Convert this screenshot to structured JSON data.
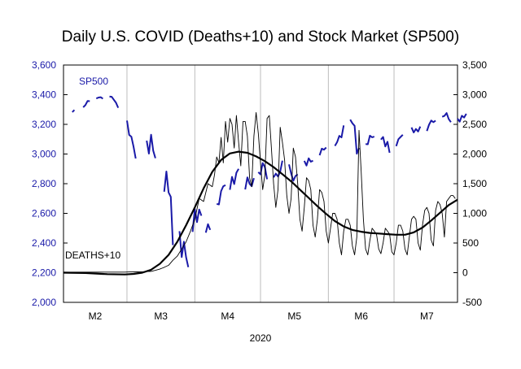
{
  "chart_data": {
    "type": "line",
    "title": "Daily U.S. COVID (Deaths+10) and Stock Market (SP500)",
    "year_label": "2020",
    "grid": "vertical",
    "x_months": [
      "M2",
      "M3",
      "M4",
      "M5",
      "M6",
      "M7"
    ],
    "x_range_days": [
      0,
      180
    ],
    "ylim_left": [
      2000,
      3600
    ],
    "ylim_right": [
      -500,
      3500
    ],
    "y_ticks_left": [
      "2,000",
      "2,200",
      "2,400",
      "2,600",
      "2,800",
      "3,000",
      "3,200",
      "3,400",
      "3,600"
    ],
    "y_ticks_right": [
      "-500",
      "0",
      "500",
      "1,000",
      "1,500",
      "2,000",
      "2,500",
      "3,000",
      "3,500"
    ],
    "colors": {
      "sp500": "#1a1aa8",
      "deaths": "#000000"
    },
    "series": [
      {
        "name": "SP500",
        "axis": "left",
        "label_text": "SP500",
        "points": [
          [
            2,
            3245
          ],
          [
            4,
            3283
          ],
          [
            5,
            3297
          ],
          [
            7,
            3300
          ],
          [
            9,
            3315
          ],
          [
            10,
            3330
          ],
          [
            11,
            3358
          ],
          [
            12,
            3356
          ],
          [
            15,
            3374
          ],
          [
            16,
            3381
          ],
          [
            17,
            3383
          ],
          [
            18,
            3373
          ],
          [
            21,
            3388
          ],
          [
            22,
            3386
          ],
          [
            23,
            3366
          ],
          [
            24,
            3346
          ],
          [
            25,
            3312
          ],
          [
            29,
            3225
          ],
          [
            30,
            3129
          ],
          [
            31,
            3116
          ],
          [
            32,
            3051
          ],
          [
            33,
            2970
          ],
          [
            35,
            2954
          ],
          [
            38,
            3090
          ],
          [
            39,
            3003
          ],
          [
            40,
            3130
          ],
          [
            41,
            3023
          ],
          [
            42,
            2972
          ],
          [
            46,
            2746
          ],
          [
            47,
            2882
          ],
          [
            48,
            2741
          ],
          [
            49,
            2711
          ],
          [
            50,
            2386
          ],
          [
            53,
            2480
          ],
          [
            54,
            2305
          ],
          [
            55,
            2409
          ],
          [
            56,
            2304
          ],
          [
            57,
            2237
          ],
          [
            59,
            2475
          ],
          [
            60,
            2630
          ],
          [
            61,
            2541
          ],
          [
            62,
            2626
          ],
          [
            63,
            2584
          ],
          [
            65,
            2470
          ],
          [
            66,
            2527
          ],
          [
            67,
            2489
          ],
          [
            70,
            2664
          ],
          [
            71,
            2660
          ],
          [
            72,
            2750
          ],
          [
            73,
            2783
          ],
          [
            74,
            2790
          ],
          [
            76,
            2759
          ],
          [
            77,
            2846
          ],
          [
            78,
            2797
          ],
          [
            79,
            2874
          ],
          [
            80,
            2900
          ],
          [
            83,
            2761
          ],
          [
            84,
            2843
          ],
          [
            85,
            2799
          ],
          [
            86,
            2783
          ],
          [
            87,
            2837
          ],
          [
            89,
            2878
          ],
          [
            90,
            2863
          ],
          [
            91,
            2939
          ],
          [
            92,
            2912
          ],
          [
            93,
            2830
          ],
          [
            96,
            2842
          ],
          [
            97,
            2868
          ],
          [
            98,
            2848
          ],
          [
            99,
            2881
          ],
          [
            100,
            2955
          ],
          [
            103,
            2930
          ],
          [
            104,
            2870
          ],
          [
            105,
            2820
          ],
          [
            106,
            2852
          ],
          [
            107,
            2863
          ],
          [
            110,
            2954
          ],
          [
            111,
            2922
          ],
          [
            112,
            2971
          ],
          [
            113,
            2948
          ],
          [
            114,
            2955
          ],
          [
            117,
            2991
          ],
          [
            118,
            3036
          ],
          [
            119,
            3029
          ],
          [
            120,
            3044
          ],
          [
            124,
            3055
          ],
          [
            125,
            3080
          ],
          [
            126,
            3122
          ],
          [
            127,
            3112
          ],
          [
            128,
            3193
          ],
          [
            131,
            3232
          ],
          [
            132,
            3207
          ],
          [
            133,
            3190
          ],
          [
            134,
            3002
          ],
          [
            135,
            3041
          ],
          [
            138,
            3067
          ],
          [
            139,
            3066
          ],
          [
            140,
            3124
          ],
          [
            141,
            3113
          ],
          [
            142,
            3117
          ],
          [
            145,
            3097
          ],
          [
            146,
            3115
          ],
          [
            147,
            3051
          ],
          [
            148,
            3083
          ],
          [
            149,
            3009
          ],
          [
            152,
            3053
          ],
          [
            153,
            3100
          ],
          [
            154,
            3115
          ],
          [
            155,
            3130
          ],
          [
            159,
            3179
          ],
          [
            160,
            3145
          ],
          [
            161,
            3169
          ],
          [
            162,
            3152
          ],
          [
            163,
            3185
          ],
          [
            166,
            3155
          ],
          [
            167,
            3197
          ],
          [
            168,
            3226
          ],
          [
            169,
            3215
          ],
          [
            170,
            3225
          ],
          [
            173,
            3251
          ],
          [
            174,
            3257
          ],
          [
            175,
            3276
          ],
          [
            176,
            3236
          ],
          [
            177,
            3215
          ],
          [
            180,
            3239
          ],
          [
            181,
            3218
          ],
          [
            182,
            3258
          ],
          [
            183,
            3246
          ],
          [
            184,
            3271
          ]
        ]
      },
      {
        "name": "DEATHS+10",
        "axis": "right",
        "label_text": "DEATHS+10",
        "points": [
          [
            0,
            10
          ],
          [
            10,
            10
          ],
          [
            20,
            10
          ],
          [
            28,
            10
          ],
          [
            30,
            12
          ],
          [
            34,
            14
          ],
          [
            36,
            15
          ],
          [
            38,
            20
          ],
          [
            40,
            22
          ],
          [
            42,
            40
          ],
          [
            44,
            60
          ],
          [
            45,
            75
          ],
          [
            46,
            90
          ],
          [
            48,
            125
          ],
          [
            50,
            210
          ],
          [
            52,
            280
          ],
          [
            54,
            400
          ],
          [
            56,
            520
          ],
          [
            58,
            700
          ],
          [
            60,
            900
          ],
          [
            62,
            1250
          ],
          [
            64,
            1200
          ],
          [
            66,
            1500
          ],
          [
            68,
            1450
          ],
          [
            69,
            1650
          ],
          [
            70,
            1950
          ],
          [
            71,
            1850
          ],
          [
            72,
            2280
          ],
          [
            73,
            1850
          ],
          [
            74,
            2550
          ],
          [
            75,
            2200
          ],
          [
            76,
            2600
          ],
          [
            77,
            2500
          ],
          [
            78,
            2100
          ],
          [
            79,
            2650
          ],
          [
            80,
            2200
          ],
          [
            81,
            1800
          ],
          [
            82,
            2550
          ],
          [
            83,
            2550
          ],
          [
            84,
            2300
          ],
          [
            85,
            1600
          ],
          [
            86,
            1450
          ],
          [
            87,
            2300
          ],
          [
            88,
            2700
          ],
          [
            89,
            2350
          ],
          [
            90,
            1850
          ],
          [
            91,
            1400
          ],
          [
            92,
            1650
          ],
          [
            93,
            2600
          ],
          [
            94,
            2650
          ],
          [
            95,
            2100
          ],
          [
            96,
            1500
          ],
          [
            97,
            1100
          ],
          [
            98,
            1400
          ],
          [
            99,
            2450
          ],
          [
            100,
            2200
          ],
          [
            101,
            1900
          ],
          [
            102,
            1300
          ],
          [
            103,
            1000
          ],
          [
            104,
            1250
          ],
          [
            105,
            2100
          ],
          [
            106,
            1950
          ],
          [
            107,
            1500
          ],
          [
            108,
            900
          ],
          [
            109,
            700
          ],
          [
            110,
            1100
          ],
          [
            111,
            1600
          ],
          [
            112,
            1550
          ],
          [
            113,
            1400
          ],
          [
            114,
            800
          ],
          [
            115,
            600
          ],
          [
            116,
            900
          ],
          [
            117,
            1400
          ],
          [
            118,
            1350
          ],
          [
            119,
            1200
          ],
          [
            120,
            700
          ],
          [
            121,
            500
          ],
          [
            122,
            750
          ],
          [
            123,
            1000
          ],
          [
            124,
            1000
          ],
          [
            125,
            900
          ],
          [
            126,
            500
          ],
          [
            127,
            300
          ],
          [
            128,
            700
          ],
          [
            129,
            900
          ],
          [
            130,
            900
          ],
          [
            131,
            800
          ],
          [
            132,
            450
          ],
          [
            133,
            300
          ],
          [
            134,
            600
          ],
          [
            135,
            2400
          ],
          [
            136,
            1700
          ],
          [
            137,
            900
          ],
          [
            138,
            400
          ],
          [
            139,
            300
          ],
          [
            140,
            550
          ],
          [
            141,
            750
          ],
          [
            142,
            700
          ],
          [
            143,
            650
          ],
          [
            144,
            400
          ],
          [
            145,
            320
          ],
          [
            146,
            500
          ],
          [
            147,
            750
          ],
          [
            148,
            700
          ],
          [
            149,
            650
          ],
          [
            150,
            350
          ],
          [
            151,
            300
          ],
          [
            152,
            500
          ],
          [
            153,
            800
          ],
          [
            154,
            800
          ],
          [
            155,
            700
          ],
          [
            156,
            400
          ],
          [
            157,
            300
          ],
          [
            158,
            600
          ],
          [
            159,
            900
          ],
          [
            160,
            950
          ],
          [
            161,
            900
          ],
          [
            162,
            500
          ],
          [
            163,
            380
          ],
          [
            164,
            800
          ],
          [
            165,
            1050
          ],
          [
            166,
            1100
          ],
          [
            167,
            1000
          ],
          [
            168,
            550
          ],
          [
            169,
            450
          ],
          [
            170,
            1050
          ],
          [
            171,
            1200
          ],
          [
            172,
            1150
          ],
          [
            173,
            1000
          ],
          [
            174,
            600
          ],
          [
            175,
            1200
          ],
          [
            176,
            1250
          ],
          [
            177,
            1300
          ],
          [
            178,
            1300
          ],
          [
            179,
            1250
          ]
        ]
      },
      {
        "name": "DEATHS+10 trend",
        "axis": "right",
        "points": [
          [
            0,
            0
          ],
          [
            10,
            -5
          ],
          [
            20,
            -25
          ],
          [
            28,
            -30
          ],
          [
            32,
            -20
          ],
          [
            36,
            0
          ],
          [
            40,
            50
          ],
          [
            44,
            150
          ],
          [
            48,
            300
          ],
          [
            52,
            520
          ],
          [
            56,
            800
          ],
          [
            60,
            1100
          ],
          [
            64,
            1420
          ],
          [
            68,
            1700
          ],
          [
            72,
            1900
          ],
          [
            76,
            2010
          ],
          [
            80,
            2040
          ],
          [
            84,
            2020
          ],
          [
            88,
            1960
          ],
          [
            92,
            1880
          ],
          [
            96,
            1780
          ],
          [
            100,
            1660
          ],
          [
            104,
            1540
          ],
          [
            108,
            1400
          ],
          [
            112,
            1260
          ],
          [
            116,
            1120
          ],
          [
            120,
            990
          ],
          [
            124,
            870
          ],
          [
            128,
            780
          ],
          [
            132,
            720
          ],
          [
            136,
            690
          ],
          [
            140,
            670
          ],
          [
            144,
            660
          ],
          [
            148,
            650
          ],
          [
            152,
            640
          ],
          [
            156,
            640
          ],
          [
            160,
            680
          ],
          [
            164,
            760
          ],
          [
            168,
            880
          ],
          [
            172,
            1010
          ],
          [
            176,
            1140
          ],
          [
            180,
            1230
          ]
        ]
      }
    ]
  }
}
